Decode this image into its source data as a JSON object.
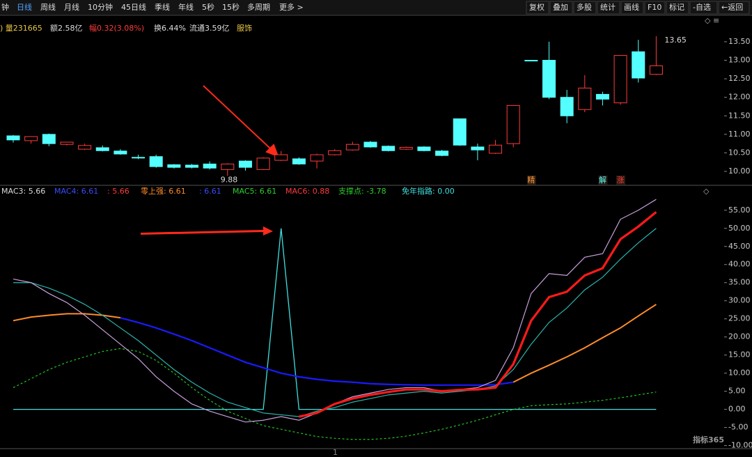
{
  "toolbar": {
    "tabs": [
      "钟",
      "日线",
      "周线",
      "月线",
      "10分钟",
      "45日线",
      "季线",
      "年线",
      "5秒",
      "15秒",
      "多周期",
      "更多 >"
    ],
    "active": 1,
    "buttons": [
      "复权",
      "叠加",
      "多股",
      "统计",
      "画线",
      "F10",
      "标记",
      "-自选",
      "←返回"
    ]
  },
  "info": [
    {
      "text": ") 量231665",
      "color": "#e8c547"
    },
    {
      "text": "额2.58亿",
      "color": "#dddddd"
    },
    {
      "text": "幅0.32(3.08%)",
      "color": "#ff3b3b"
    },
    {
      "text": "换6.44%",
      "color": "#dddddd"
    },
    {
      "text": "流通3.59亿",
      "color": "#dddddd"
    },
    {
      "text": "服饰",
      "color": "#e8c547"
    }
  ],
  "watermark": "指标365",
  "chart_data": [
    {
      "type": "candlestick",
      "ylim": [
        9.7,
        14.1
      ],
      "yticks": [
        {
          "value": 10,
          "label": "10.00"
        },
        {
          "value": 10.5,
          "label": "10.50"
        },
        {
          "value": 11,
          "label": "11.00"
        },
        {
          "value": 11.5,
          "label": "11.50"
        },
        {
          "value": 12,
          "label": "12.00"
        },
        {
          "value": 12.5,
          "label": "12.50"
        },
        {
          "value": 13,
          "label": "13.00"
        },
        {
          "value": 13.5,
          "label": "13.50"
        }
      ],
      "up_color": "#ff3b3b",
      "down_color": "#54ffff",
      "candles": [
        {
          "o": 10.96,
          "h": 10.98,
          "l": 10.78,
          "c": 10.85
        },
        {
          "o": 10.83,
          "h": 10.95,
          "l": 10.75,
          "c": 10.94
        },
        {
          "o": 11.0,
          "h": 11.02,
          "l": 10.68,
          "c": 10.75
        },
        {
          "o": 10.73,
          "h": 10.8,
          "l": 10.7,
          "c": 10.79
        },
        {
          "o": 10.6,
          "h": 10.75,
          "l": 10.58,
          "c": 10.7
        },
        {
          "o": 10.64,
          "h": 10.7,
          "l": 10.54,
          "c": 10.56
        },
        {
          "o": 10.55,
          "h": 10.6,
          "l": 10.45,
          "c": 10.47
        },
        {
          "o": 10.38,
          "h": 10.45,
          "l": 10.33,
          "c": 10.37
        },
        {
          "o": 10.4,
          "h": 10.45,
          "l": 10.1,
          "c": 10.13
        },
        {
          "o": 10.18,
          "h": 10.2,
          "l": 10.08,
          "c": 10.11
        },
        {
          "o": 10.17,
          "h": 10.2,
          "l": 10.08,
          "c": 10.11
        },
        {
          "o": 10.2,
          "h": 10.27,
          "l": 10.05,
          "c": 10.09
        },
        {
          "o": 10.05,
          "h": 10.22,
          "l": 9.88,
          "c": 10.2
        },
        {
          "o": 10.28,
          "h": 10.3,
          "l": 10.02,
          "c": 10.11
        },
        {
          "o": 10.05,
          "h": 10.38,
          "l": 10.04,
          "c": 10.36
        },
        {
          "o": 10.3,
          "h": 10.55,
          "l": 10.28,
          "c": 10.45
        },
        {
          "o": 10.34,
          "h": 10.38,
          "l": 10.18,
          "c": 10.2
        },
        {
          "o": 10.28,
          "h": 10.48,
          "l": 10.08,
          "c": 10.45
        },
        {
          "o": 10.45,
          "h": 10.6,
          "l": 10.43,
          "c": 10.56
        },
        {
          "o": 10.58,
          "h": 10.8,
          "l": 10.56,
          "c": 10.73
        },
        {
          "o": 10.79,
          "h": 10.82,
          "l": 10.64,
          "c": 10.66
        },
        {
          "o": 10.68,
          "h": 10.7,
          "l": 10.54,
          "c": 10.56
        },
        {
          "o": 10.6,
          "h": 10.67,
          "l": 10.58,
          "c": 10.65
        },
        {
          "o": 10.66,
          "h": 10.68,
          "l": 10.54,
          "c": 10.56
        },
        {
          "o": 10.55,
          "h": 10.58,
          "l": 10.41,
          "c": 10.43
        },
        {
          "o": 11.42,
          "h": 11.42,
          "l": 10.69,
          "c": 10.71
        },
        {
          "o": 10.66,
          "h": 10.75,
          "l": 10.3,
          "c": 10.58
        },
        {
          "o": 10.49,
          "h": 10.85,
          "l": 10.47,
          "c": 10.71
        },
        {
          "o": 10.75,
          "h": 11.78,
          "l": 10.65,
          "c": 11.78
        },
        {
          "o": 13.0,
          "h": 13.0,
          "l": 12.97,
          "c": 12.98
        },
        {
          "o": 13.0,
          "h": 13.5,
          "l": 11.95,
          "c": 12.0
        },
        {
          "o": 12.0,
          "h": 12.2,
          "l": 11.3,
          "c": 11.5
        },
        {
          "o": 11.67,
          "h": 12.6,
          "l": 11.6,
          "c": 12.25
        },
        {
          "o": 12.08,
          "h": 12.15,
          "l": 11.78,
          "c": 11.95
        },
        {
          "o": 11.85,
          "h": 13.13,
          "l": 11.8,
          "c": 13.13
        },
        {
          "o": 13.23,
          "h": 13.55,
          "l": 12.4,
          "c": 12.52
        },
        {
          "o": 12.62,
          "h": 13.65,
          "l": 12.6,
          "c": 12.85
        }
      ],
      "low_label": "9.88",
      "high_label": "13.65",
      "signals": [
        null,
        null,
        null,
        null,
        null,
        null,
        null,
        null,
        null,
        null,
        null,
        null,
        null,
        null,
        null,
        null,
        null,
        null,
        null,
        null,
        null,
        null,
        null,
        null,
        null,
        null,
        null,
        null,
        null,
        "精",
        null,
        null,
        null,
        "解",
        "涨",
        null,
        null
      ],
      "signal_colors": [
        "#ff9a3c",
        "#54ffff",
        "#ff3b3b"
      ]
    },
    {
      "type": "line",
      "ylim": [
        -12,
        61.5
      ],
      "yticks": [
        {
          "value": -10,
          "label": "-10.00"
        },
        {
          "value": -5,
          "label": "-5.00"
        },
        {
          "value": 0,
          "label": "0.00"
        },
        {
          "value": 5,
          "label": "5.00"
        },
        {
          "value": 10,
          "label": "10.00"
        },
        {
          "value": 15,
          "label": "15.00"
        },
        {
          "value": 20,
          "label": "20.00"
        },
        {
          "value": 25,
          "label": "25.00"
        },
        {
          "value": 30,
          "label": "30.00"
        },
        {
          "value": 35,
          "label": "35.00"
        },
        {
          "value": 40,
          "label": "40.00"
        },
        {
          "value": 45,
          "label": "45.00"
        },
        {
          "value": 50,
          "label": "50.00"
        },
        {
          "value": 55,
          "label": "55.00"
        }
      ],
      "legend": [
        {
          "text": "MAC3: 5.66",
          "color": "#dddddd"
        },
        {
          "text": "MAC4: 6.61",
          "color": "#3b4bff"
        },
        {
          "text": ": 5.66",
          "color": "#ff3b3b"
        },
        {
          "text": "零上强: 6.61",
          "color": "#ff8c2a"
        },
        {
          "text": ": 6.61",
          "color": "#3b4bff"
        },
        {
          "text": "MAC5: 6.61",
          "color": "#2ed12e"
        },
        {
          "text": "MAC6: 0.88",
          "color": "#ff3b3b"
        },
        {
          "text": "支撑点: -3.78",
          "color": "#2ed12e"
        },
        {
          "text": "免年指路: 0.00",
          "color": "#40e0e0"
        }
      ],
      "series": [
        {
          "color": "#40e0e0",
          "width": 1.3,
          "dash": false,
          "values": [
            0,
            0,
            0,
            0,
            0,
            0,
            0,
            0,
            0,
            0,
            0,
            0,
            0,
            0,
            0,
            50,
            0,
            0,
            0,
            0,
            0,
            0,
            0,
            0,
            0,
            0,
            0,
            0,
            0,
            0,
            0,
            0,
            0,
            0,
            0,
            0,
            0
          ]
        },
        {
          "color": "#22c322",
          "width": 1.2,
          "dash": true,
          "values": [
            6,
            8.5,
            11,
            13,
            14.5,
            16,
            16.8,
            16,
            13.5,
            10,
            6,
            2.5,
            -0.5,
            -2.5,
            -4.5,
            -5.5,
            -6.5,
            -7.5,
            -8,
            -8.3,
            -8.3,
            -8,
            -7.4,
            -6.5,
            -5.5,
            -4.3,
            -3,
            -1.5,
            0,
            1,
            1.3,
            1.5,
            2,
            2.5,
            3.2,
            4,
            4.8
          ]
        },
        {
          "color": "#ff8c2a",
          "width": 2,
          "dash": false,
          "values": [
            24.5,
            25.5,
            26,
            26.4,
            26.4,
            26,
            25.3,
            null,
            null,
            null,
            null,
            null,
            null,
            null,
            null,
            null,
            null,
            null,
            null,
            null,
            null,
            null,
            null,
            null,
            null,
            null,
            null,
            null,
            7.5,
            10,
            12.2,
            14.5,
            17,
            19.8,
            22.5,
            25.8,
            29
          ]
        },
        {
          "color": "#1a1aff",
          "width": 2.2,
          "dash": false,
          "values": [
            null,
            null,
            null,
            null,
            null,
            null,
            25.3,
            24,
            22.5,
            20.8,
            19,
            17,
            15,
            13,
            11.5,
            10,
            9,
            8.3,
            7.8,
            7.5,
            7.1,
            6.9,
            6.8,
            6.7,
            6.7,
            6.7,
            6.7,
            6.8,
            7.5,
            null,
            null,
            null,
            null,
            null,
            null,
            null,
            null
          ]
        },
        {
          "color": "#2bb5ad",
          "width": 1.2,
          "dash": false,
          "values": [
            35,
            35,
            33.5,
            31.5,
            29,
            26,
            22.5,
            19,
            15,
            11,
            7.5,
            4.5,
            2,
            0.5,
            -1,
            -1.5,
            -2,
            -0.5,
            0.5,
            2,
            3,
            4,
            4.5,
            5,
            4.5,
            5,
            5.5,
            6.5,
            11,
            18,
            24,
            28,
            33,
            36.5,
            41.5,
            46,
            50
          ]
        },
        {
          "color": "#c9a0dc",
          "width": 1.2,
          "dash": false,
          "values": [
            36,
            35,
            32,
            29.5,
            26,
            22,
            18,
            14,
            9,
            5,
            1.5,
            -0.5,
            -2,
            -3.5,
            -3,
            -2,
            -3,
            -1,
            1.5,
            3.5,
            4.5,
            5.5,
            6,
            6,
            5,
            5.5,
            6,
            8,
            17,
            32,
            37.5,
            37,
            42,
            43,
            52.5,
            55,
            58
          ]
        },
        {
          "color": "#ff1a1a",
          "width": 3.2,
          "dash": false,
          "values": [
            null,
            null,
            null,
            null,
            null,
            null,
            null,
            null,
            null,
            null,
            null,
            null,
            null,
            null,
            null,
            null,
            -2,
            -1,
            1.5,
            3,
            4,
            4.8,
            5.5,
            5.5,
            5,
            5.4,
            5.5,
            6,
            12.5,
            24.5,
            31,
            32.5,
            37,
            39,
            47,
            50.5,
            54.5
          ]
        }
      ]
    }
  ]
}
